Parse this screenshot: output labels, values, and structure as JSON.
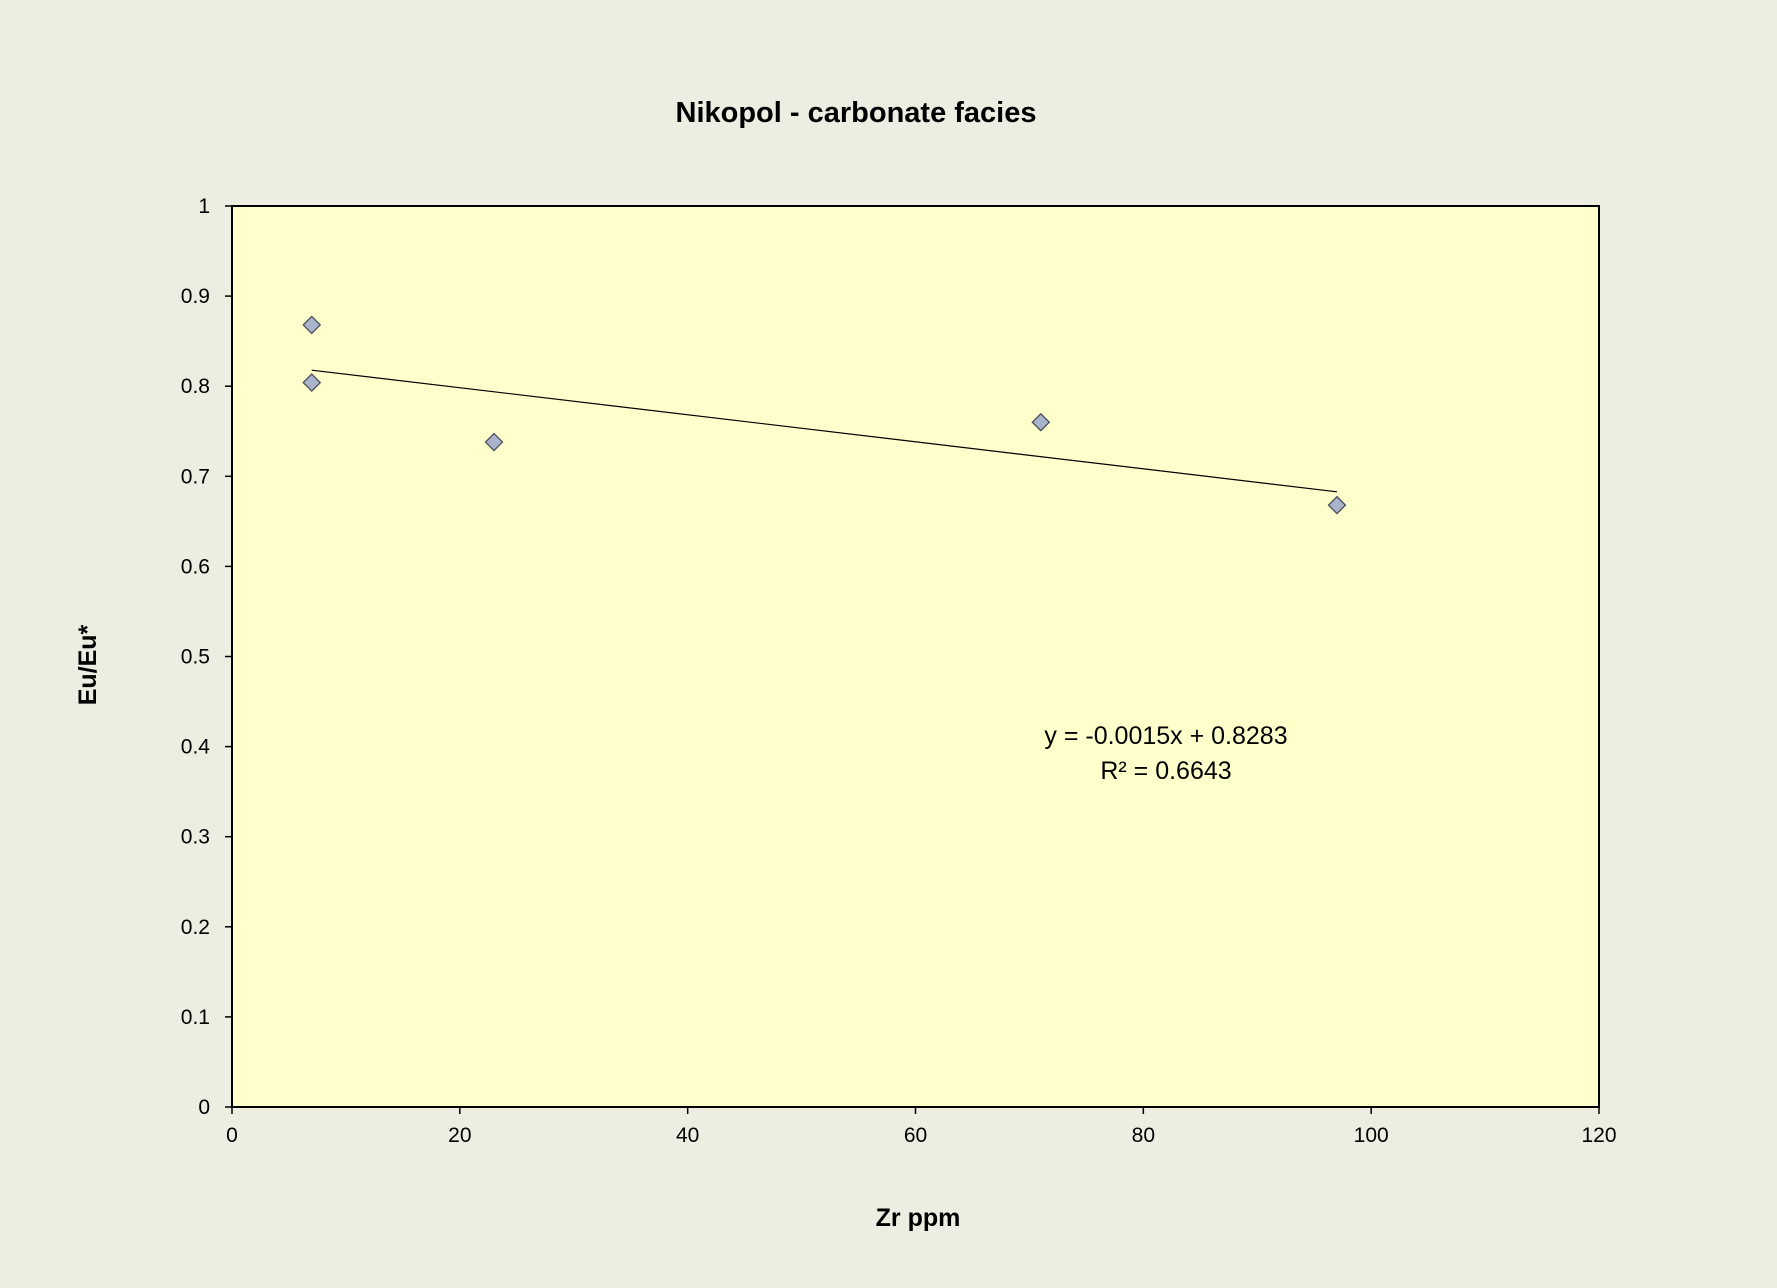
{
  "chart_data": {
    "type": "scatter",
    "title": "Nikopol - carbonate facies",
    "xlabel": "Zr ppm",
    "ylabel": "Eu/Eu*",
    "xlim": [
      0,
      120
    ],
    "ylim": [
      0,
      1
    ],
    "x_ticks": [
      "0",
      "20",
      "40",
      "60",
      "80",
      "100",
      "120"
    ],
    "y_ticks": [
      "0",
      "0.1",
      "0.2",
      "0.3",
      "0.4",
      "0.5",
      "0.6",
      "0.7",
      "0.8",
      "0.9",
      "1"
    ],
    "grid": false,
    "legend": "none",
    "series": [
      {
        "points": [
          {
            "x": 7,
            "y": 0.868
          },
          {
            "x": 7,
            "y": 0.804
          },
          {
            "x": 23,
            "y": 0.738
          },
          {
            "x": 71,
            "y": 0.76
          },
          {
            "x": 97,
            "y": 0.668
          }
        ],
        "marker": "diamond",
        "color": "#a9b4cc"
      }
    ],
    "trendline": {
      "type": "linear",
      "x_range": [
        7,
        97
      ],
      "slope": -0.0015,
      "intercept": 0.8283,
      "equation": "y = -0.0015x + 0.8283",
      "r_squared": "R² = 0.6643"
    },
    "colors": {
      "background": "#eeede1",
      "plot_area": "#ffffcc",
      "marker_fill": "#a9b4cc",
      "marker_stroke": "#4a4f5a",
      "line": "#000000"
    }
  }
}
